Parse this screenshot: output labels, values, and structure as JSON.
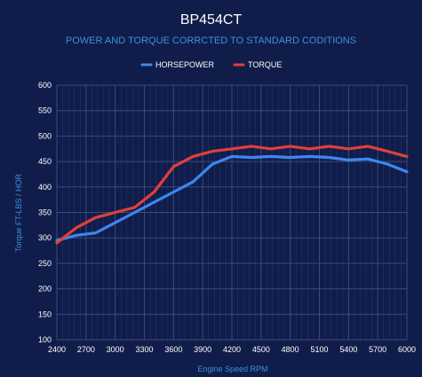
{
  "colors": {
    "background": "#101d4a",
    "horsepower": "#3d87f0",
    "torque": "#e0403a",
    "accent_text": "#3d8fe0"
  },
  "chart_data": {
    "type": "line",
    "title": "BP454CT",
    "subtitle": "POWER AND TORQUE CORRCTED TO STANDARD CODITIONS",
    "xlabel": "Engine Speed RPM",
    "ylabel": "Torque FT-LBS / HOR",
    "xlim": [
      2400,
      6000
    ],
    "ylim": [
      100,
      600
    ],
    "x_ticks": [
      "2400",
      "2700",
      "3000",
      "3300",
      "3600",
      "3900",
      "4200",
      "4500",
      "4800",
      "5100",
      "5400",
      "5700",
      "6000"
    ],
    "y_ticks": [
      "100",
      "150",
      "200",
      "250",
      "300",
      "350",
      "400",
      "450",
      "500",
      "550",
      "600"
    ],
    "grid": true,
    "legend_position": "top-center",
    "x": [
      2400,
      2600,
      2800,
      3000,
      3200,
      3400,
      3600,
      3800,
      4000,
      4200,
      4400,
      4600,
      4800,
      5000,
      5200,
      5400,
      5600,
      5800,
      6000
    ],
    "series": [
      {
        "name": "HORSEPOWER",
        "color": "#3d87f0",
        "values": [
          295,
          305,
          310,
          330,
          350,
          370,
          390,
          410,
          445,
          460,
          458,
          460,
          458,
          460,
          458,
          453,
          455,
          445,
          430
        ]
      },
      {
        "name": "TORQUE",
        "color": "#e0403a",
        "values": [
          290,
          320,
          340,
          350,
          360,
          390,
          440,
          460,
          470,
          475,
          480,
          475,
          480,
          475,
          480,
          475,
          480,
          470,
          460
        ]
      }
    ]
  }
}
